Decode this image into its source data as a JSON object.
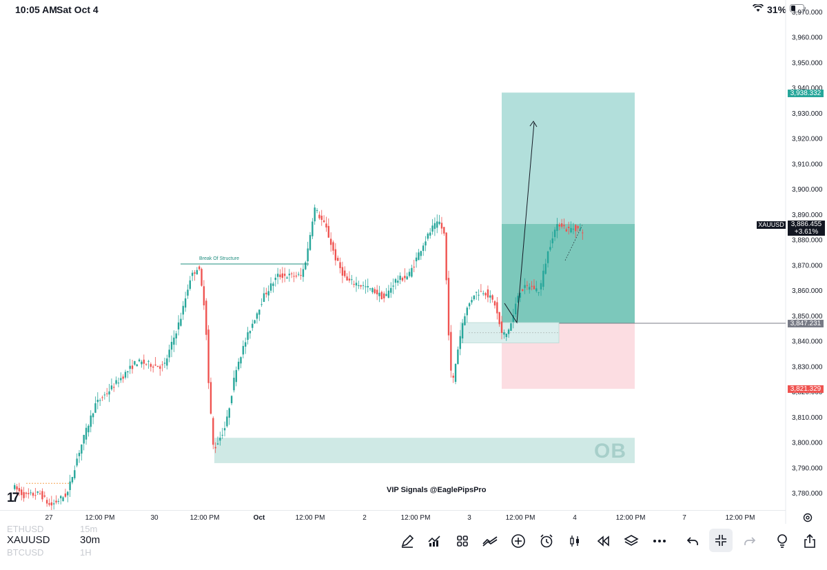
{
  "status_bar": {
    "time": "10:05 AM",
    "date": "Sat Oct 4",
    "battery": "31%"
  },
  "chart": {
    "symbol_tag": "XAUUSD",
    "current_price": "3,886.455",
    "change_pct": "+3.61%",
    "target_price": "3,938.332",
    "entry_price": "3,847.231",
    "stop_price": "3,821.329",
    "break_of_structure": "Break Of Structure",
    "ob_label": "OB",
    "watermark": "VIP Signals @EaglePipsPro",
    "logo": "17",
    "price_axis": [
      "3,970.000",
      "3,960.000",
      "3,950.000",
      "3,940.000",
      "3,930.000",
      "3,920.000",
      "3,910.000",
      "3,900.000",
      "3,890.000",
      "3,880.000",
      "3,870.000",
      "3,860.000",
      "3,850.000",
      "3,840.000",
      "3,830.000",
      "3,820.000",
      "3,810.000",
      "3,800.000",
      "3,790.000",
      "3,780.000"
    ],
    "time_axis": [
      "27",
      "12:00 PM",
      "30",
      "12:00 PM",
      "Oct",
      "12:00 PM",
      "2",
      "12:00 PM",
      "3",
      "12:00 PM",
      "4",
      "12:00 PM",
      "7",
      "12:00 PM"
    ],
    "colors": {
      "up": "#26a69a",
      "down": "#ef5350",
      "target_zone": "#b2dfdb",
      "stop_zone": "#fcdde2",
      "ob_zone": "#cfe9e5"
    }
  },
  "chart_data": {
    "type": "candlestick",
    "symbol": "XAUUSD",
    "interval": "30m",
    "ylim": [
      3775,
      3975
    ],
    "long_position": {
      "entry": 3847.231,
      "target": 3938.332,
      "stop": 3821.329
    },
    "last_price": 3886.455
  },
  "toolbar": {
    "symbol": "XAUUSD",
    "interval": "30m",
    "symbol_prev": "ETHUSD",
    "interval_prev": "15m",
    "symbol_next": "BTCUSD",
    "interval_next": "1H"
  }
}
